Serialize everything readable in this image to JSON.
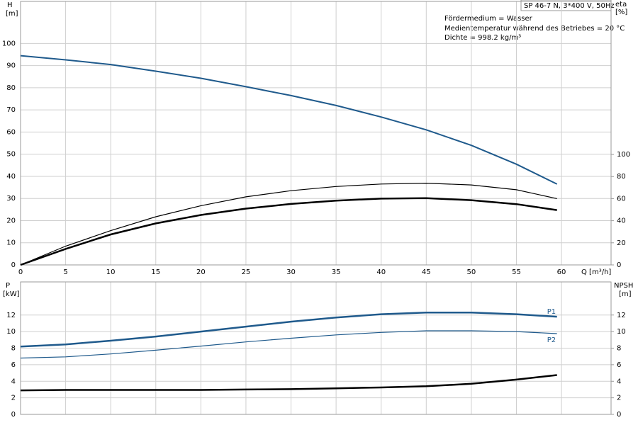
{
  "chart_data": [
    {
      "type": "line",
      "title": "SP 46-7 N, 3*400 V, 50Hz",
      "notes": [
        "Fördermedium = Wasser",
        "Medientemperatur während des Betriebes = 20 °C",
        "Dichte = 998.2 kg/m³"
      ],
      "ylabel": "H",
      "yunit": "[m]",
      "y2label": "eta",
      "y2unit": "[%]",
      "xlabel": "Q [m³/h]",
      "x": [
        0,
        5,
        10,
        15,
        20,
        25,
        30,
        35,
        40,
        45,
        50,
        55,
        59.5
      ],
      "xlim": [
        0,
        65.5
      ],
      "xticks": [
        0,
        5,
        10,
        15,
        20,
        25,
        30,
        35,
        40,
        45,
        50,
        55,
        60
      ],
      "ylim": [
        0,
        119
      ],
      "yticks": [
        0,
        10,
        20,
        30,
        40,
        50,
        60,
        70,
        80,
        90,
        100
      ],
      "y2lim": [
        0,
        238.5
      ],
      "y2ticks": [
        0,
        20,
        40,
        60,
        80,
        100
      ],
      "grid": true,
      "series": [
        {
          "color": "#1f5a8c",
          "line_width": 2,
          "values": [
            94.5,
            92.6,
            90.5,
            87.5,
            84.3,
            80.5,
            76.5,
            72,
            66.8,
            61,
            54,
            45.5,
            36.5
          ]
        },
        {
          "color": "#000000",
          "line_width": 1.2,
          "axis": "y2",
          "values": [
            0,
            17,
            31,
            43.6,
            53.6,
            61.6,
            67.2,
            71,
            73.2,
            74,
            72.4,
            68,
            60
          ]
        },
        {
          "color": "#000000",
          "line_width": 2.5,
          "axis": "y2",
          "values": [
            0,
            14.5,
            27.6,
            37.6,
            45.2,
            51,
            55.2,
            58.2,
            60,
            60.4,
            58.6,
            55,
            49.6
          ]
        }
      ]
    },
    {
      "type": "line",
      "ylabel": "P",
      "yunit": "[kW]",
      "y2label": "NPSH",
      "y2unit": "[m]",
      "x": [
        0,
        5,
        10,
        15,
        20,
        25,
        30,
        35,
        40,
        45,
        50,
        55,
        59.5
      ],
      "xlim": [
        0,
        65.5
      ],
      "ylim": [
        0,
        16
      ],
      "yticks": [
        0,
        2,
        4,
        6,
        8,
        10,
        12
      ],
      "y2lim": [
        0,
        16
      ],
      "y2ticks": [
        0,
        2,
        4,
        6,
        8,
        10,
        12
      ],
      "grid": true,
      "series": [
        {
          "name": "P1",
          "color": "#1f5a8c",
          "line_width": 2.5,
          "values": [
            8.2,
            8.45,
            8.9,
            9.4,
            10,
            10.6,
            11.2,
            11.7,
            12.1,
            12.3,
            12.3,
            12.1,
            11.8
          ]
        },
        {
          "name": "P2",
          "color": "#1f5a8c",
          "line_width": 1.2,
          "values": [
            6.8,
            6.95,
            7.3,
            7.75,
            8.25,
            8.75,
            9.2,
            9.6,
            9.9,
            10.1,
            10.1,
            10,
            9.75
          ]
        },
        {
          "color": "#000000",
          "line_width": 2.5,
          "axis": "y2",
          "values": [
            2.9,
            2.95,
            2.95,
            2.95,
            2.95,
            3,
            3.05,
            3.15,
            3.25,
            3.4,
            3.7,
            4.2,
            4.75
          ]
        }
      ]
    }
  ]
}
